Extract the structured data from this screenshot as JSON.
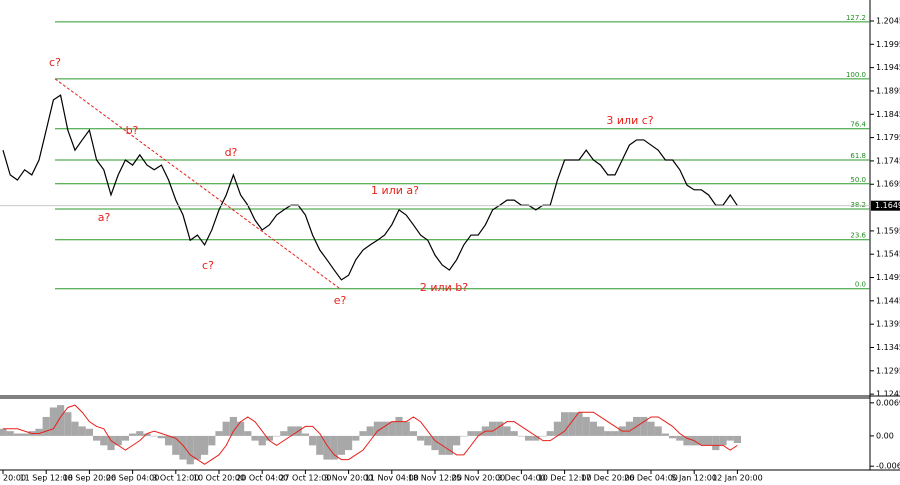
{
  "chart_data": [
    {
      "type": "line",
      "categories": [
        "20:00",
        null,
        null,
        null,
        null,
        null,
        "11 Sep 12:00",
        null,
        null,
        null,
        null,
        null,
        "18 Sep 20:00",
        null,
        null,
        null,
        null,
        null,
        "26 Sep 04:00",
        null,
        null,
        null,
        null,
        null,
        "3 Oct 12:00",
        null,
        null,
        null,
        null,
        null,
        "10 Oct 20:00",
        null,
        null,
        null,
        null,
        null,
        "20 Oct 04:00",
        null,
        null,
        null,
        null,
        null,
        "27 Oct 12:00",
        null,
        null,
        null,
        null,
        null,
        "3 Nov 20:00",
        null,
        null,
        null,
        null,
        null,
        "11 Nov 04:00",
        null,
        null,
        null,
        null,
        null,
        "18 Nov 12:00",
        null,
        null,
        null,
        null,
        null,
        "25 Nov 20:00",
        null,
        null,
        null,
        null,
        null,
        "3 Dec 04:00",
        null,
        null,
        null,
        null,
        null,
        "10 Dec 12:00",
        null,
        null,
        null,
        null,
        null,
        "17 Dec 20:00",
        null,
        null,
        null,
        null,
        null,
        "26 Dec 04:00",
        null,
        null,
        null,
        null,
        null,
        "5 Jan 12:00",
        null,
        null,
        null,
        null,
        null,
        "12 Jan 20:00"
      ],
      "series": [
        {
          "color": "#000000",
          "values": [
            1.1768,
            1.1715,
            1.1704,
            1.1726,
            1.1715,
            1.1747,
            1.1811,
            1.1876,
            1.1886,
            1.1811,
            1.1768,
            1.179,
            1.1811,
            1.1747,
            1.1726,
            1.1672,
            1.1715,
            1.1747,
            1.1736,
            1.1758,
            1.1736,
            1.1726,
            1.1736,
            1.1704,
            1.1661,
            1.1629,
            1.1575,
            1.1586,
            1.1565,
            1.1597,
            1.164,
            1.1672,
            1.1715,
            1.1672,
            1.165,
            1.1618,
            1.1597,
            1.1608,
            1.1629,
            1.164,
            1.165,
            1.165,
            1.1629,
            1.1586,
            1.1554,
            1.1533,
            1.1511,
            1.149,
            1.15,
            1.1533,
            1.1554,
            1.1565,
            1.1575,
            1.1586,
            1.1608,
            1.164,
            1.1629,
            1.1608,
            1.1586,
            1.1575,
            1.1543,
            1.1522,
            1.1511,
            1.1533,
            1.1565,
            1.1586,
            1.1586,
            1.1608,
            1.164,
            1.165,
            1.1661,
            1.1661,
            1.165,
            1.165,
            1.164,
            1.165,
            1.165,
            1.1704,
            1.1747,
            1.1747,
            1.1747,
            1.1768,
            1.1747,
            1.1736,
            1.1715,
            1.1715,
            1.1747,
            1.1779,
            1.179,
            1.179,
            1.1779,
            1.1768,
            1.1747,
            1.1747,
            1.1726,
            1.1693,
            1.1683,
            1.1683,
            1.1672,
            1.165,
            1.165,
            1.1672,
            1.1649
          ]
        }
      ],
      "current_price": 1.1649,
      "ylim": [
        1.1241,
        1.209
      ],
      "yticks": [
        1.2045,
        1.1995,
        1.1945,
        1.1895,
        1.1845,
        1.1795,
        1.1745,
        1.1695,
        1.1595,
        1.1545,
        1.1495,
        1.1445,
        1.1395,
        1.1345,
        1.1295,
        1.1245
      ],
      "fib_color": "#2a9a2a",
      "fib_levels": [
        {
          "name": "127.2",
          "value": 1.2043
        },
        {
          "name": "100.0",
          "value": 1.1921
        },
        {
          "name": "76.4",
          "value": 1.1814
        },
        {
          "name": "61.8",
          "value": 1.1747
        },
        {
          "name": "50.0",
          "value": 1.1696
        },
        {
          "name": "38.2",
          "value": 1.1642
        },
        {
          "name": "23.6",
          "value": 1.1576
        },
        {
          "name": "0.0",
          "value": 1.1471
        }
      ],
      "trend_line": {
        "color": "#e8201a",
        "start": 1.1921,
        "end": 1.1471
      },
      "annotations": [
        "c?",
        "a?",
        "b?",
        "c?",
        "d?",
        "e?",
        "1 или a?",
        "2 или b?",
        "3 или c?"
      ]
    },
    {
      "type": "bar",
      "color": "#a8a8a8",
      "values": [
        0.0015,
        0.001,
        0.0005,
        0.0005,
        0.001,
        0.0015,
        0.004,
        0.006,
        0.0065,
        0.005,
        0.003,
        0.002,
        0.0015,
        -0.001,
        -0.002,
        -0.003,
        -0.002,
        -0.001,
        0.0005,
        0.001,
        0.0005,
        0.0,
        -0.0005,
        -0.002,
        -0.004,
        -0.005,
        -0.006,
        -0.005,
        -0.004,
        -0.002,
        0.001,
        0.003,
        0.004,
        0.003,
        0.001,
        -0.001,
        -0.002,
        -0.001,
        0.0,
        0.001,
        0.002,
        0.002,
        0.0005,
        -0.002,
        -0.004,
        -0.005,
        -0.005,
        -0.004,
        -0.003,
        -0.001,
        0.001,
        0.002,
        0.003,
        0.003,
        0.003,
        0.004,
        0.003,
        0.001,
        -0.001,
        -0.002,
        -0.003,
        -0.004,
        -0.004,
        -0.002,
        0.0,
        0.001,
        0.001,
        0.002,
        0.003,
        0.003,
        0.002,
        0.001,
        0.0,
        -0.001,
        -0.001,
        0.0,
        0.001,
        0.003,
        0.005,
        0.005,
        0.005,
        0.004,
        0.003,
        0.002,
        0.001,
        0.001,
        0.002,
        0.003,
        0.004,
        0.004,
        0.003,
        0.002,
        0.0005,
        -0.0005,
        -0.001,
        -0.002,
        -0.002,
        -0.002,
        -0.002,
        -0.003,
        -0.002,
        -0.001,
        -0.0015
      ],
      "signal": {
        "color": "#e8201a",
        "values": [
          0.0015,
          0.0015,
          0.0015,
          0.001,
          0.0005,
          0.0005,
          0.001,
          0.0015,
          0.004,
          0.006,
          0.0065,
          0.005,
          0.003,
          0.002,
          0.0015,
          -0.001,
          -0.002,
          -0.003,
          -0.002,
          -0.001,
          0.0005,
          0.001,
          0.0005,
          0.0,
          -0.0005,
          -0.002,
          -0.004,
          -0.005,
          -0.006,
          -0.005,
          -0.004,
          -0.002,
          0.001,
          0.003,
          0.004,
          0.003,
          0.001,
          -0.001,
          -0.002,
          -0.001,
          0.0,
          0.001,
          0.002,
          0.002,
          0.0005,
          -0.002,
          -0.004,
          -0.005,
          -0.005,
          -0.004,
          -0.003,
          -0.001,
          0.001,
          0.002,
          0.003,
          0.003,
          0.003,
          0.004,
          0.003,
          0.001,
          -0.001,
          -0.002,
          -0.003,
          -0.004,
          -0.004,
          -0.002,
          0.0,
          0.001,
          0.001,
          0.002,
          0.003,
          0.003,
          0.002,
          0.001,
          0.0,
          -0.001,
          -0.001,
          0.0,
          0.001,
          0.003,
          0.005,
          0.005,
          0.005,
          0.004,
          0.003,
          0.002,
          0.001,
          0.001,
          0.002,
          0.003,
          0.004,
          0.004,
          0.003,
          0.002,
          0.0005,
          -0.0005,
          -0.001,
          -0.002,
          -0.002,
          -0.002,
          -0.002,
          -0.003,
          -0.002
        ]
      },
      "ylim": [
        -0.0072,
        0.008
      ],
      "yticks": [
        0.00698,
        {
          "value": 0,
          "label": "0.00"
        },
        -0.0064
      ]
    }
  ]
}
